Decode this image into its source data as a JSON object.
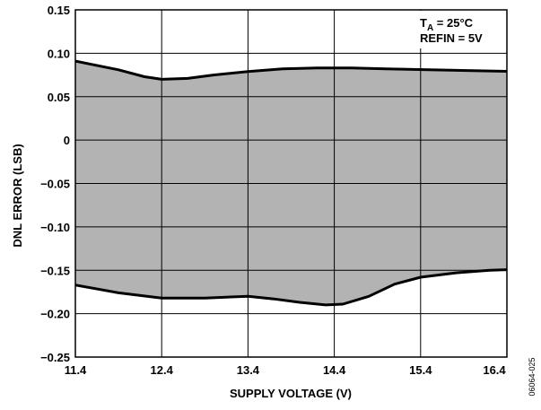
{
  "chart_data": {
    "type": "area",
    "xlabel": "SUPPLY VOLTAGE (V)",
    "ylabel": "DNL ERROR (LSB)",
    "xlim": [
      11.4,
      16.4
    ],
    "ylim": [
      -0.25,
      0.15
    ],
    "grid": true,
    "x_ticks": [
      "11.4",
      "12.4",
      "13.4",
      "14.4",
      "15.4",
      "16.4"
    ],
    "y_ticks": [
      "0.15",
      "0.10",
      "0.05",
      "0",
      "−0.05",
      "−0.10",
      "−0.15",
      "−0.20",
      "−0.25"
    ],
    "series": [
      {
        "x": [
          11.4,
          11.9,
          12.2,
          12.4,
          12.7,
          13.0,
          13.4,
          13.8,
          14.2,
          14.6,
          15.0,
          15.5,
          16.0,
          16.5
        ],
        "values": [
          0.091,
          0.081,
          0.073,
          0.07,
          0.071,
          0.075,
          0.079,
          0.082,
          0.083,
          0.083,
          0.082,
          0.081,
          0.08,
          0.079
        ]
      },
      {
        "x": [
          11.4,
          11.9,
          12.4,
          12.9,
          13.4,
          13.7,
          14.0,
          14.3,
          14.5,
          14.8,
          15.1,
          15.4,
          15.8,
          16.2,
          16.5
        ],
        "values": [
          -0.167,
          -0.176,
          -0.182,
          -0.182,
          -0.18,
          -0.183,
          -0.187,
          -0.19,
          -0.189,
          -0.18,
          -0.166,
          -0.158,
          -0.153,
          -0.15,
          -0.149
        ]
      }
    ],
    "fill_between_series": true,
    "fill_color": "#b3b3b3",
    "line_color": "#000000",
    "annotation": {
      "line1_main": "T",
      "line1_sub": "A",
      "line1_rest": " = 25°C",
      "line2": "REFIN = 5V",
      "position": "top-right"
    }
  },
  "figure_code": "06064-025"
}
